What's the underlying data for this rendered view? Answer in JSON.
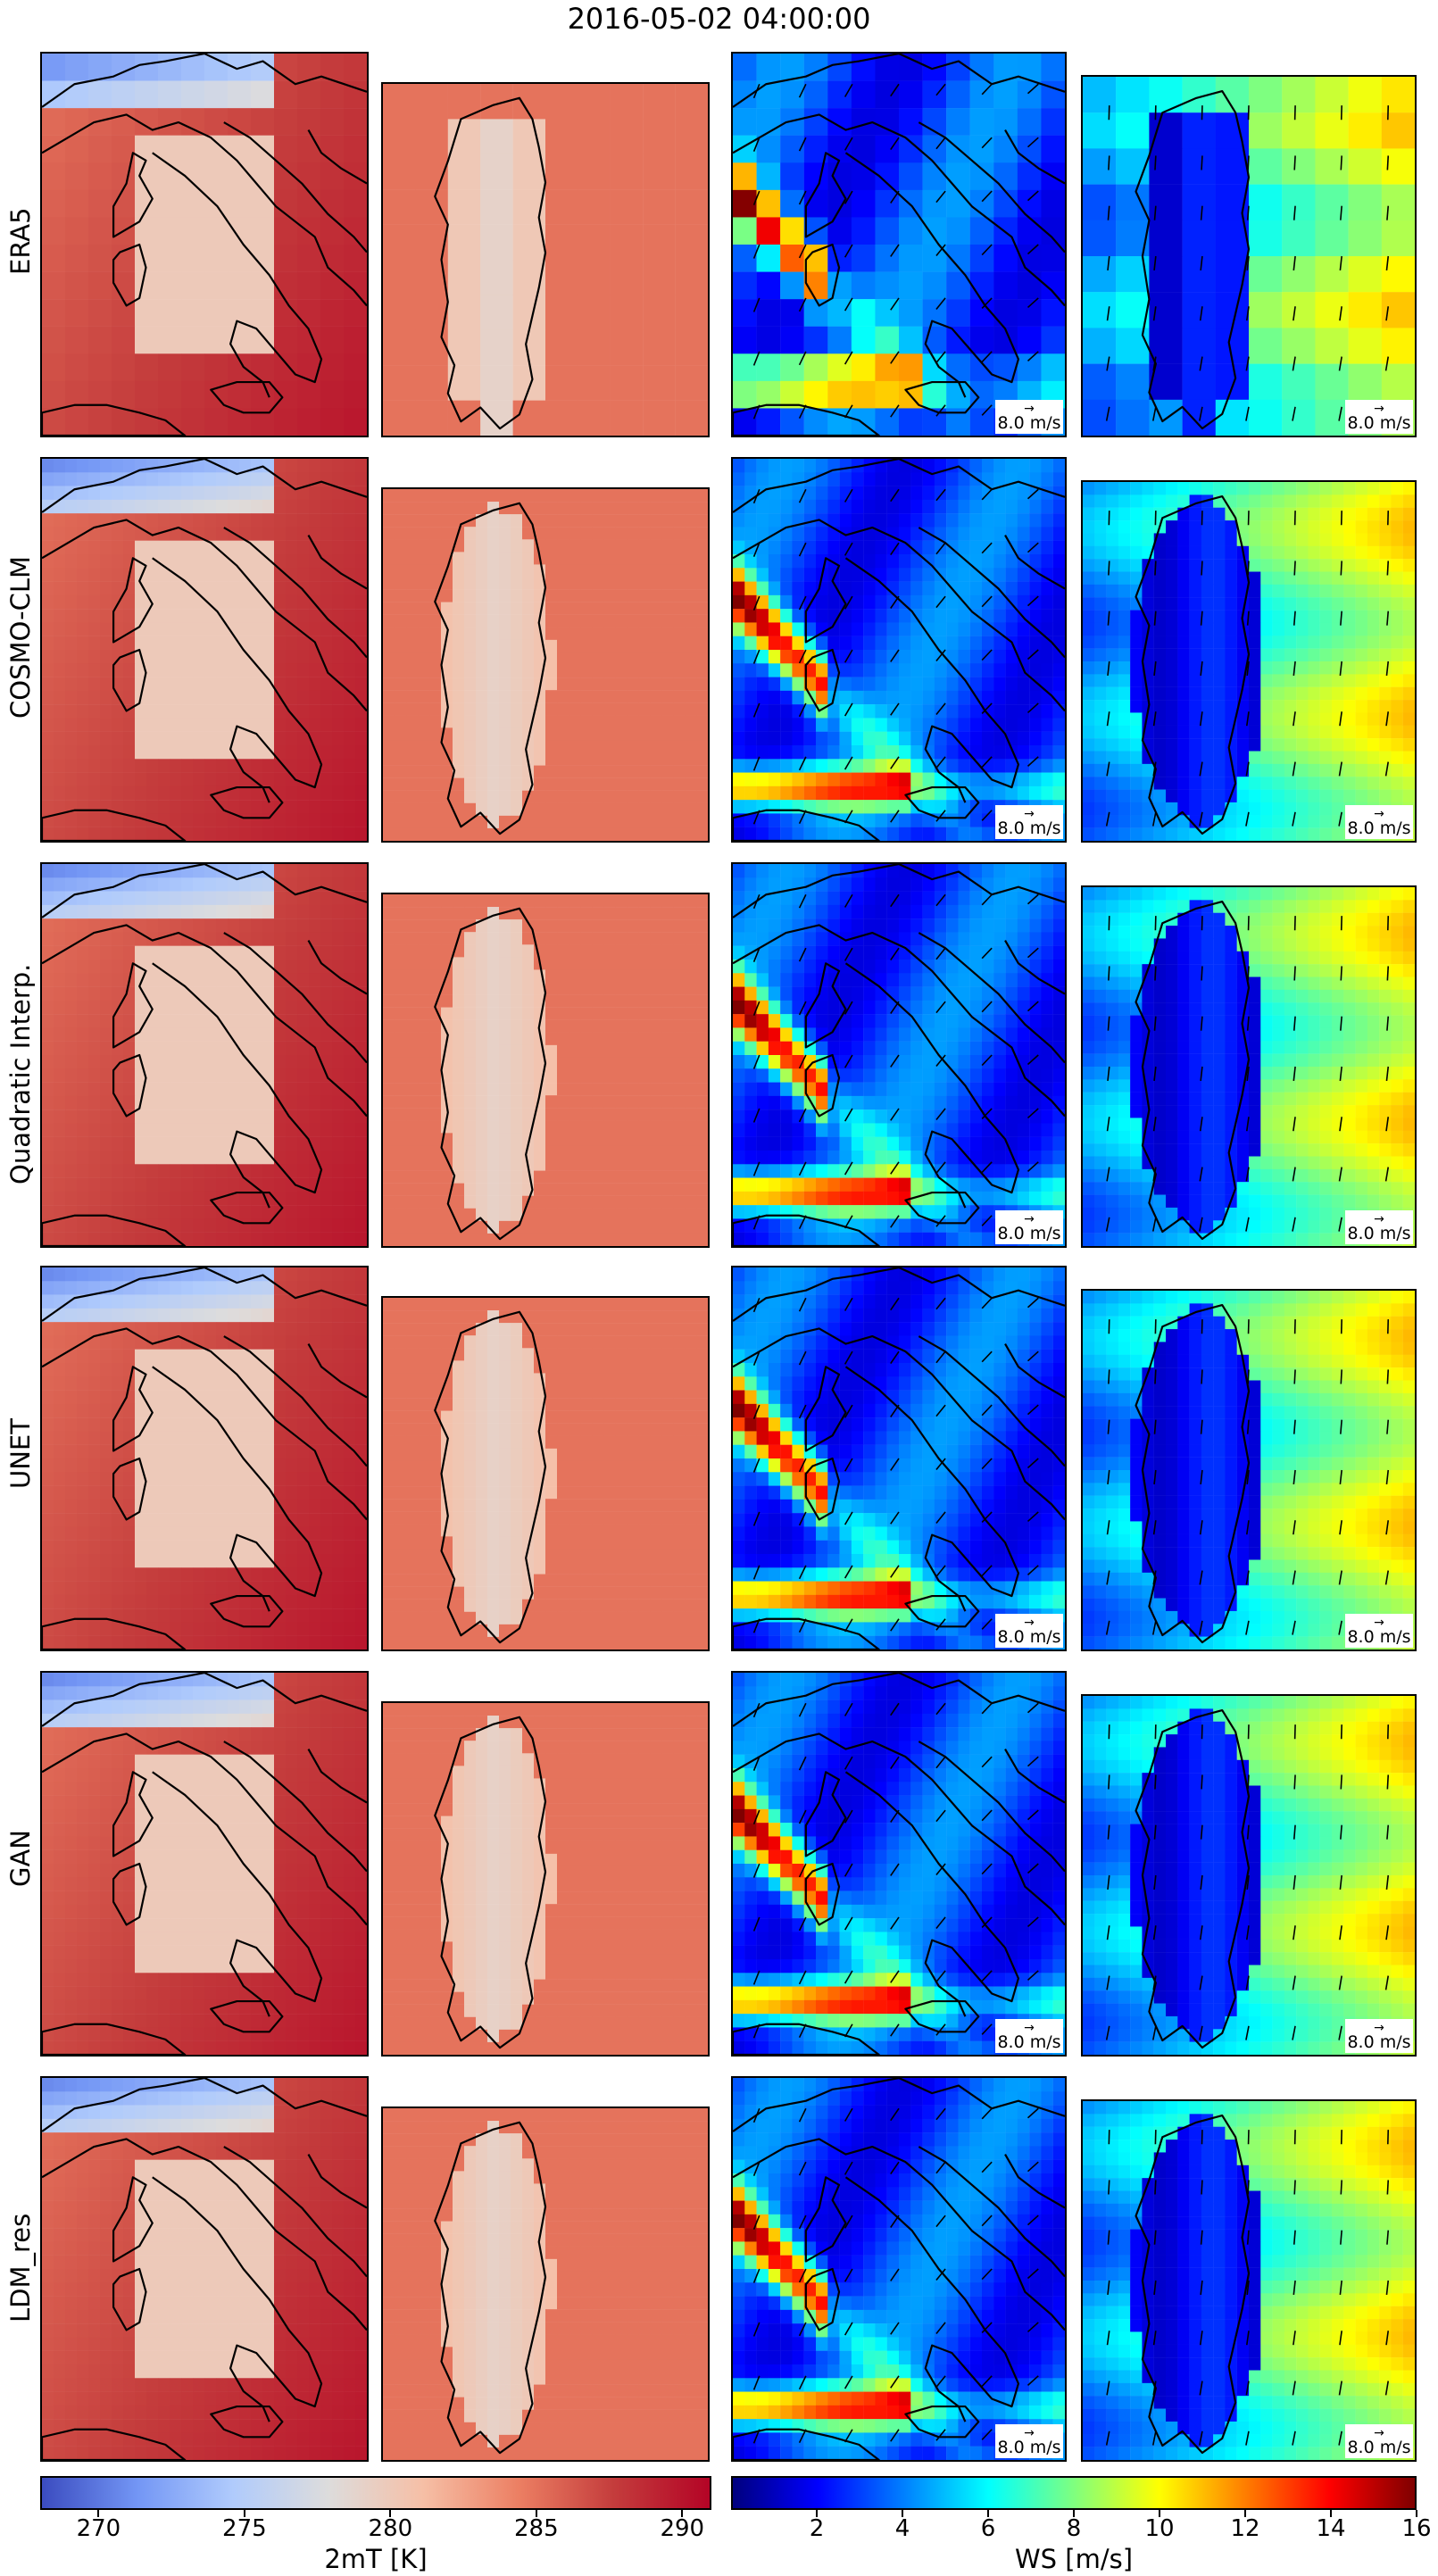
{
  "title": "2016-05-02 04:00:00",
  "rows": [
    "ERA5",
    "COSMO-CLM",
    "Quadratic Interp.",
    "UNET",
    "GAN",
    "LDM_res"
  ],
  "columns": [
    {
      "variable": "2mT",
      "domain": "italy"
    },
    {
      "variable": "2mT",
      "domain": "sardinia"
    },
    {
      "variable": "WS",
      "domain": "italy"
    },
    {
      "variable": "WS",
      "domain": "sardinia"
    }
  ],
  "reference_vector": "8.0 m/s",
  "colorbars": [
    {
      "label": "2mT [K]",
      "colormap": "coolwarm",
      "range": [
        268,
        291
      ],
      "ticks": [
        "270",
        "275",
        "280",
        "285",
        "290"
      ],
      "tick_values": [
        270,
        275,
        280,
        285,
        290
      ],
      "colors": [
        "#3b4cc0",
        "#7396f5",
        "#b0cbfc",
        "#dddcdc",
        "#f6bfa6",
        "#ec7f63",
        "#c43c3c",
        "#b40426"
      ]
    },
    {
      "label": "WS [m/s]",
      "colormap": "jet",
      "range": [
        0,
        16
      ],
      "ticks": [
        "2",
        "4",
        "6",
        "8",
        "10",
        "12",
        "14",
        "16"
      ],
      "tick_values": [
        2,
        4,
        6,
        8,
        10,
        12,
        14,
        16
      ],
      "colors": [
        "#00007f",
        "#0000ff",
        "#007fff",
        "#00ffff",
        "#7fff7f",
        "#ffff00",
        "#ff7f00",
        "#ff0000",
        "#7f0000"
      ]
    }
  ],
  "chart_data": {
    "type": "heatmap",
    "title": "2016-05-02 04:00:00",
    "models": [
      "ERA5",
      "COSMO-CLM",
      "Quadratic Interp.",
      "UNET",
      "GAN",
      "LDM_res"
    ],
    "variables": [
      {
        "label": "2mT [K]",
        "range": [
          268,
          291
        ],
        "ticks": [
          270,
          275,
          280,
          285,
          290
        ]
      },
      {
        "label": "WS [m/s]",
        "range": [
          0,
          16
        ],
        "ticks": [
          2,
          4,
          6,
          8,
          10,
          12,
          14,
          16
        ],
        "quiver_reference": "8.0 m/s"
      }
    ],
    "typical_values": {
      "2mT_sea": 285,
      "2mT_sardinia": 279,
      "2mT_alps": 270,
      "WS_tyrrhenian": 3,
      "WS_gulf_of_lion_jet": 15,
      "WS_sicily_channel": 13,
      "WS_sardinia_east_sea": 8
    }
  }
}
